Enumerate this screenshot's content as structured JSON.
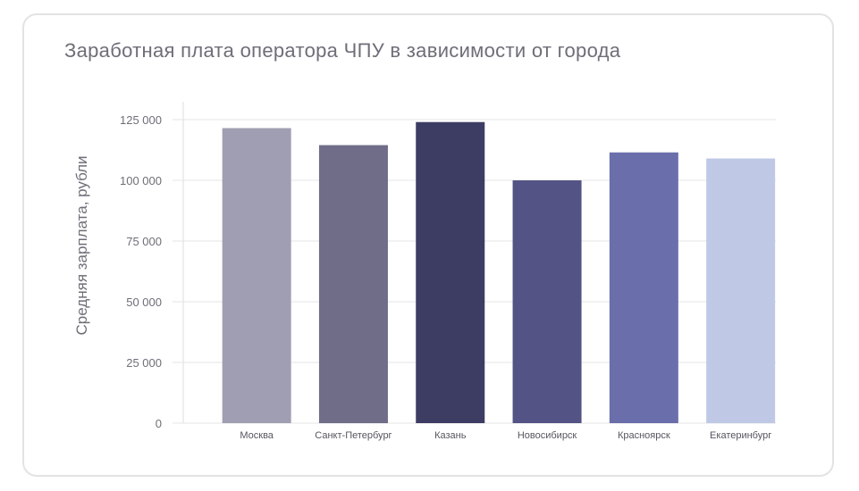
{
  "chart_data": {
    "type": "bar",
    "title": "Заработная плата оператора ЧПУ в зависимости от города",
    "ylabel": "Средняя зарплата, рубли",
    "xlabel": "",
    "categories": [
      "Москва",
      "Санкт-Петербург",
      "Казань",
      "Новосибирск",
      "Красноярск",
      "Екатеринбург"
    ],
    "values": [
      121500,
      114500,
      124000,
      100000,
      111500,
      109000
    ],
    "colors": [
      "#a09eb2",
      "#6f6d88",
      "#3d3c62",
      "#535385",
      "#6a6eab",
      "#bfc9e6"
    ],
    "ylim": [
      0,
      125000
    ],
    "yticks": [
      0,
      25000,
      50000,
      75000,
      100000,
      125000
    ],
    "ytick_labels": [
      "0",
      "25 000",
      "50 000",
      "75 000",
      "100 000",
      "125 000"
    ],
    "grid": true
  }
}
